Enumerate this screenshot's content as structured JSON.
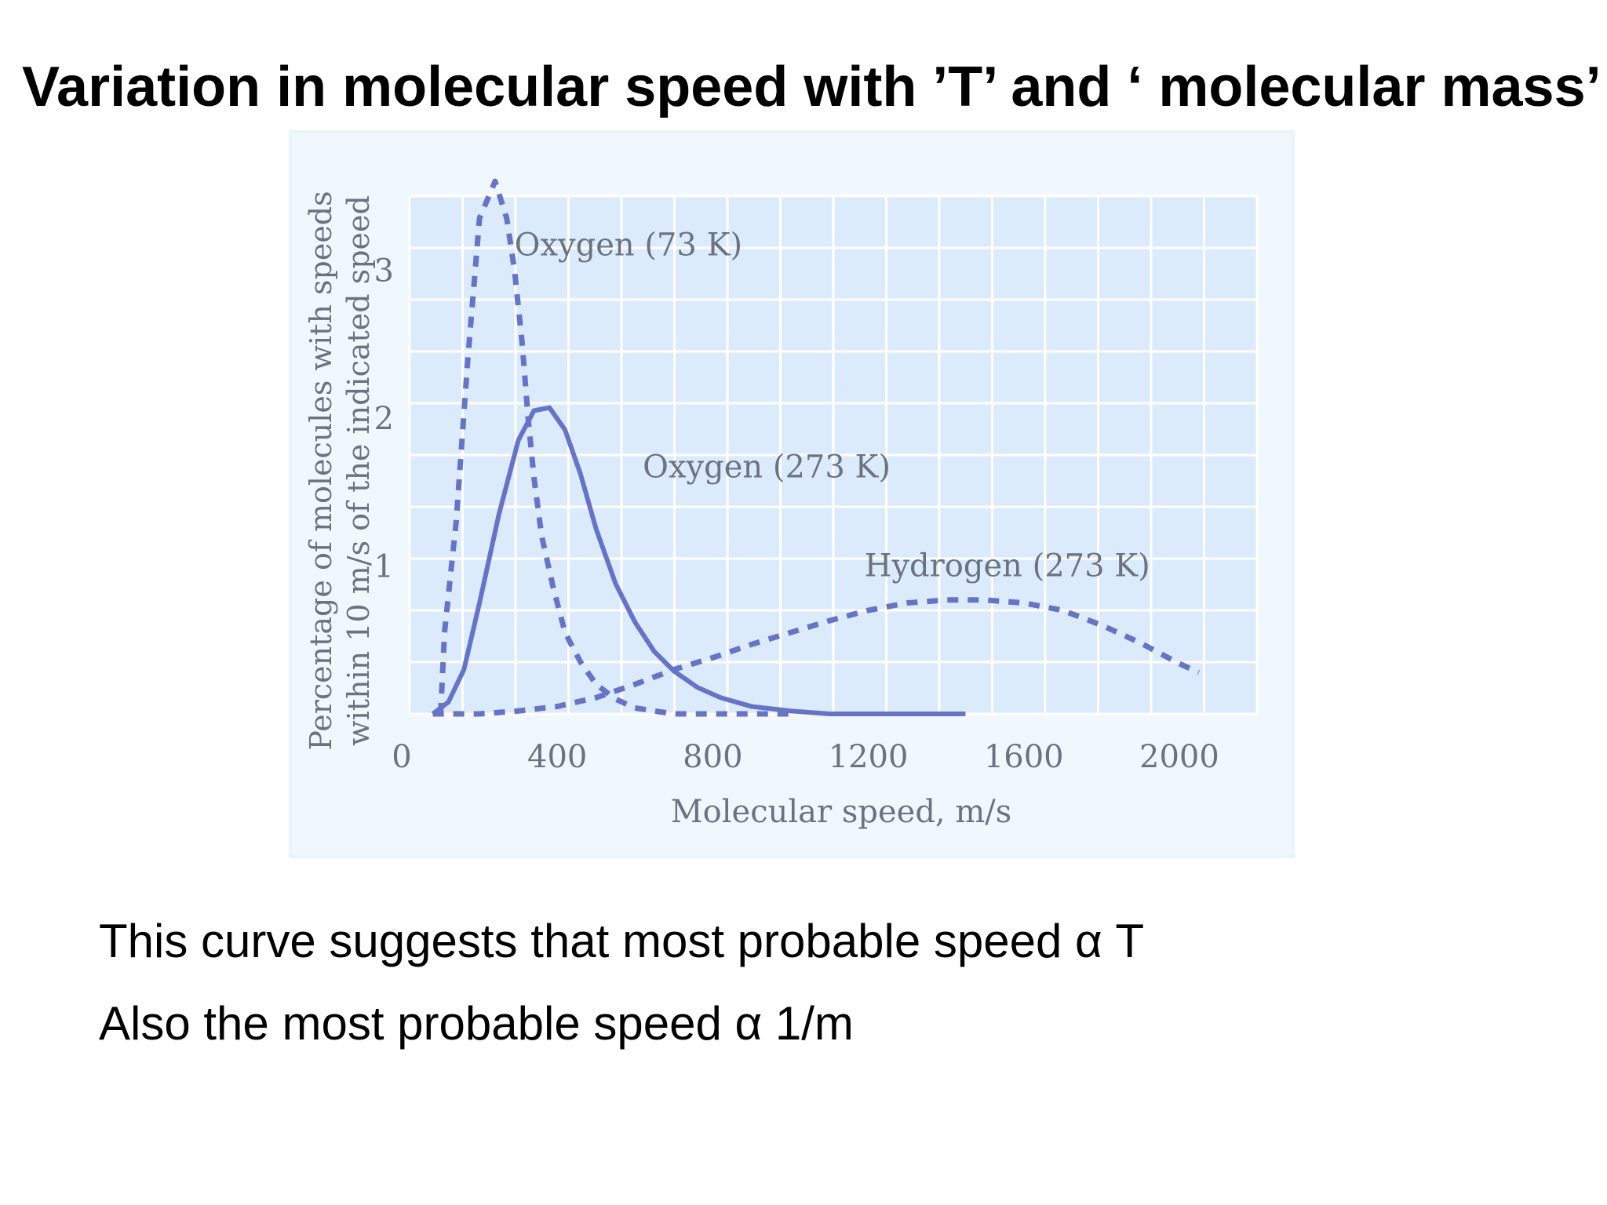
{
  "slide": {
    "title": "Variation in molecular speed with ’T’ and ‘ molecular mass’",
    "notes": [
      "This curve suggests that most probable speed α  T",
      "Also the most probable speed α  1/m"
    ]
  },
  "chart_data": {
    "type": "line",
    "xlabel": "Molecular speed, m/s",
    "ylabel": [
      "Percentage of molecules with speeds",
      "within 10 m/s of the indicated speed"
    ],
    "xlim": [
      0,
      2200
    ],
    "ylim": [
      0,
      3.5
    ],
    "xticks": [
      0,
      400,
      800,
      1200,
      1600,
      2000
    ],
    "yticks": [
      1,
      2,
      3
    ],
    "grid": true,
    "colors": {
      "line": "#6673c8",
      "grid": "#ffffff",
      "plot_bg": "#dcebfb",
      "label": "#6b7280"
    },
    "series": [
      {
        "name": "Oxygen (73 K)",
        "style": "dashed",
        "x": [
          100,
          110,
          140,
          170,
          200,
          240,
          270,
          290,
          310,
          325,
          340,
          360,
          390,
          420,
          460,
          500,
          550,
          600,
          650,
          700,
          800,
          900,
          1000
        ],
        "y": [
          0.0,
          0.55,
          1.3,
          2.4,
          3.35,
          3.6,
          3.35,
          3.0,
          2.5,
          2.0,
          1.6,
          1.2,
          0.85,
          0.55,
          0.35,
          0.2,
          0.1,
          0.04,
          0.02,
          0.0,
          0.0,
          0.0,
          0.0
        ]
      },
      {
        "name": "Oxygen (273 K)",
        "style": "solid",
        "x": [
          80,
          120,
          160,
          200,
          250,
          300,
          340,
          380,
          420,
          460,
          500,
          550,
          600,
          650,
          700,
          760,
          820,
          900,
          1000,
          1100,
          1200,
          1300,
          1450
        ],
        "y": [
          0.0,
          0.08,
          0.3,
          0.75,
          1.35,
          1.85,
          2.05,
          2.07,
          1.92,
          1.62,
          1.25,
          0.88,
          0.62,
          0.42,
          0.29,
          0.18,
          0.11,
          0.05,
          0.02,
          0.0,
          0.0,
          0.0,
          0.0
        ]
      },
      {
        "name": "Hydrogen (273 K)",
        "style": "dashed",
        "x": [
          80,
          200,
          300,
          400,
          500,
          600,
          700,
          800,
          900,
          1000,
          1100,
          1200,
          1300,
          1400,
          1500,
          1600,
          1700,
          1800,
          1900,
          2000,
          2050
        ],
        "y": [
          0.0,
          0.0,
          0.02,
          0.05,
          0.11,
          0.2,
          0.3,
          0.38,
          0.47,
          0.55,
          0.63,
          0.7,
          0.75,
          0.77,
          0.77,
          0.75,
          0.7,
          0.6,
          0.48,
          0.34,
          0.28
        ]
      }
    ],
    "annotations": [
      {
        "text": "Oxygen (73 K)",
        "x": 290,
        "y": 3.1
      },
      {
        "text": "Oxygen (273 K)",
        "x": 620,
        "y": 1.6
      },
      {
        "text": "Hydrogen (273 K)",
        "x": 1190,
        "y": 0.93
      }
    ]
  }
}
